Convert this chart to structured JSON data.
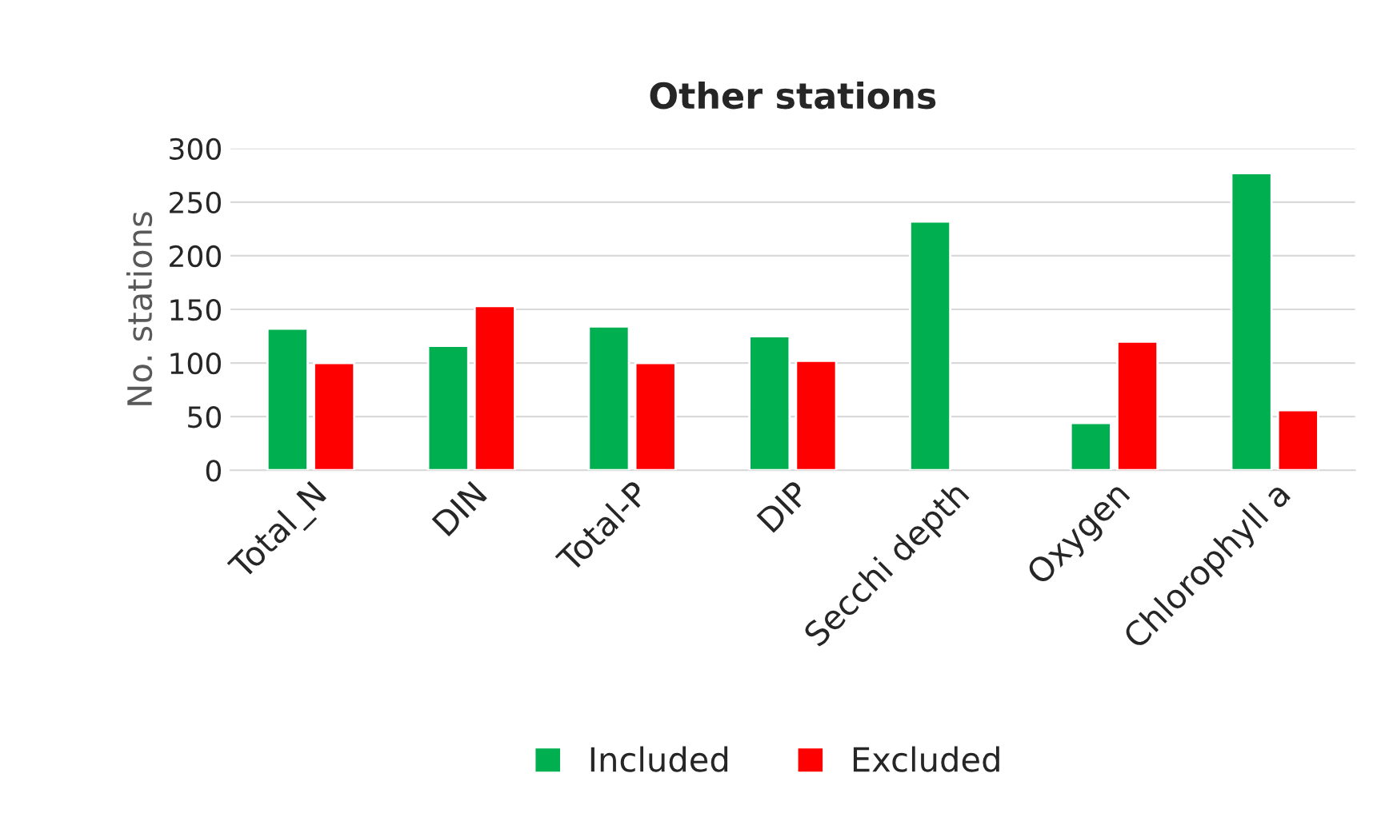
{
  "chart_data": {
    "type": "bar",
    "title": "Other stations",
    "ylabel": "No. stations",
    "categories": [
      "Total_N",
      "DIN",
      "Total-P",
      "DIP",
      "Secchi depth",
      "Oxygen",
      "Chlorophyll a"
    ],
    "series": [
      {
        "name": "Included",
        "color": "#00b050",
        "values": [
          132,
          116,
          134,
          125,
          232,
          44,
          277
        ]
      },
      {
        "name": "Excluded",
        "color": "#ff0000",
        "values": [
          100,
          153,
          100,
          102,
          null,
          120,
          56
        ]
      }
    ],
    "ylim": [
      0,
      300
    ],
    "yticks": [
      0,
      50,
      100,
      150,
      200,
      250,
      300
    ],
    "grid": "y",
    "legend": "bottom"
  }
}
